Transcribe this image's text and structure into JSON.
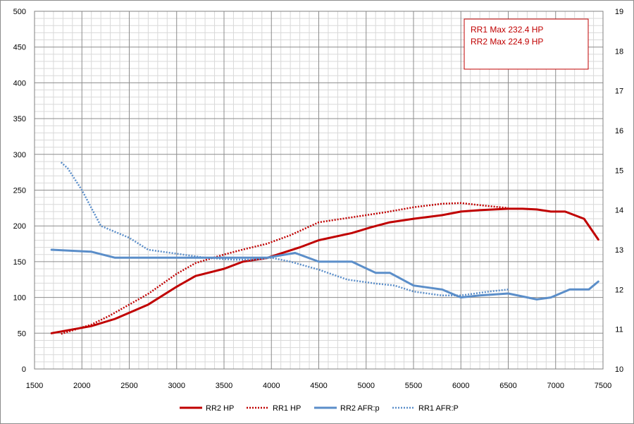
{
  "chart_data": {
    "type": "line",
    "title": "",
    "x_axis": {
      "min": 1500,
      "max": 7500,
      "major_step": 500,
      "minor_step": 100,
      "tick_labels": [
        "1500",
        "2000",
        "2500",
        "3000",
        "3500",
        "4000",
        "4500",
        "5000",
        "5500",
        "6000",
        "6500",
        "7000",
        "7500"
      ]
    },
    "y_left": {
      "min": 0,
      "max": 500,
      "major_step": 50,
      "minor_step": 10,
      "tick_labels": [
        "0",
        "50",
        "100",
        "150",
        "200",
        "250",
        "300",
        "350",
        "400",
        "450",
        "500"
      ]
    },
    "y_right": {
      "min": 10,
      "max": 19,
      "major_step": 1,
      "tick_labels": [
        "10",
        "11",
        "12",
        "13",
        "14",
        "15",
        "16",
        "17",
        "18",
        "19"
      ]
    },
    "grid": true,
    "legend_position": "bottom",
    "series": [
      {
        "name": "RR2 HP",
        "axis": "left",
        "color": "#c00000",
        "style": "solid",
        "x": [
          1680,
          2100,
          2350,
          2700,
          3000,
          3200,
          3500,
          3700,
          3950,
          4300,
          4500,
          4850,
          5050,
          5250,
          5500,
          5800,
          6000,
          6200,
          6500,
          6650,
          6800,
          6950,
          7100,
          7300,
          7450
        ],
        "y": [
          50,
          60,
          70,
          90,
          115,
          130,
          140,
          150,
          155,
          170,
          180,
          190,
          198,
          205,
          210,
          215,
          220,
          222,
          224,
          224,
          223,
          220,
          220,
          210,
          181
        ]
      },
      {
        "name": "RR1 HP",
        "axis": "left",
        "color": "#c00000",
        "style": "dotted",
        "x": [
          1780,
          2100,
          2300,
          2700,
          3000,
          3200,
          3500,
          3700,
          3950,
          4200,
          4500,
          4900,
          5200,
          5500,
          5800,
          6000,
          6200,
          6500
        ],
        "y": [
          49,
          62,
          75,
          105,
          133,
          148,
          160,
          167,
          175,
          187,
          205,
          213,
          219,
          226,
          231,
          232,
          229,
          225
        ]
      },
      {
        "name": "RR2 AFR:p",
        "axis": "right",
        "color": "#5b8ec9",
        "style": "solid",
        "x": [
          1680,
          2100,
          2350,
          2700,
          3000,
          3200,
          3500,
          3700,
          3950,
          4250,
          4500,
          4850,
          5100,
          5250,
          5500,
          5800,
          6000,
          6200,
          6500,
          6800,
          6950,
          7150,
          7350,
          7450
        ],
        "y": [
          13.0,
          12.95,
          12.8,
          12.8,
          12.8,
          12.8,
          12.8,
          12.8,
          12.8,
          12.92,
          12.7,
          12.7,
          12.42,
          12.42,
          12.1,
          12.0,
          11.8,
          11.85,
          11.9,
          11.75,
          11.8,
          12.0,
          12.0,
          12.2
        ]
      },
      {
        "name": "RR1 AFR:P",
        "axis": "right",
        "color": "#5b8ec9",
        "style": "dotted",
        "x": [
          1780,
          1850,
          2000,
          2200,
          2500,
          2700,
          3000,
          3300,
          3600,
          3800,
          4000,
          4200,
          4500,
          4800,
          5100,
          5300,
          5500,
          5800,
          6000,
          6300,
          6500
        ],
        "y": [
          15.2,
          15.05,
          14.5,
          13.6,
          13.3,
          13.0,
          12.9,
          12.8,
          12.75,
          12.75,
          12.8,
          12.7,
          12.5,
          12.25,
          12.15,
          12.1,
          11.95,
          11.85,
          11.85,
          11.95,
          12.0
        ]
      }
    ],
    "annotation": {
      "lines": [
        "RR1 Max 232.4  HP",
        "RR2 Max 224.9  HP"
      ],
      "border_color": "#c00000"
    }
  }
}
